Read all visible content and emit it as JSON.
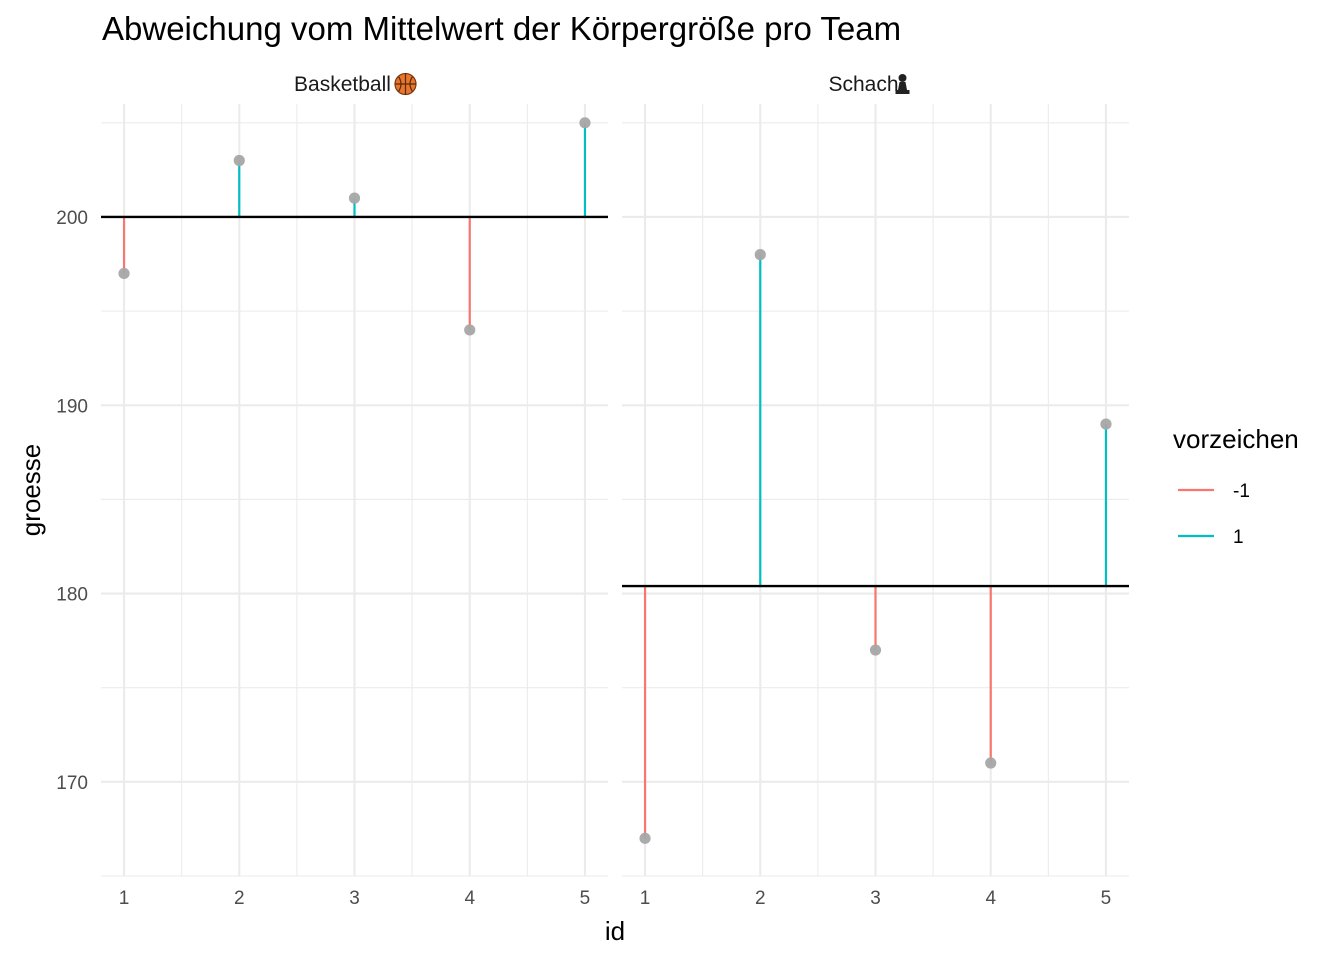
{
  "chart_data": {
    "type": "lollipop",
    "title": "Abweichung vom Mittelwert der Körpergröße pro Team",
    "xlabel": "id",
    "ylabel": "groesse",
    "ylim": [
      165,
      206
    ],
    "yticks": [
      170,
      180,
      190,
      200
    ],
    "xticks": [
      1,
      2,
      3,
      4,
      5
    ],
    "grid": true,
    "legend": {
      "title": "vorzeichen",
      "position": "right",
      "entries": [
        {
          "label": "-1",
          "color": "#F8766D"
        },
        {
          "label": "1",
          "color": "#00BFC4"
        }
      ]
    },
    "point_color": "#a6a6a6",
    "mean_line_color": "#000000",
    "panels": [
      {
        "label": "Basketball",
        "icon": "basketball-icon",
        "mean": 200,
        "points": [
          {
            "id": 1,
            "groesse": 197,
            "vorzeichen": "-1"
          },
          {
            "id": 2,
            "groesse": 203,
            "vorzeichen": "1"
          },
          {
            "id": 3,
            "groesse": 201,
            "vorzeichen": "1"
          },
          {
            "id": 4,
            "groesse": 194,
            "vorzeichen": "-1"
          },
          {
            "id": 5,
            "groesse": 205,
            "vorzeichen": "1"
          }
        ]
      },
      {
        "label": "Schach",
        "icon": "chess-pawn-icon",
        "mean": 180.4,
        "points": [
          {
            "id": 1,
            "groesse": 167,
            "vorzeichen": "-1"
          },
          {
            "id": 2,
            "groesse": 198,
            "vorzeichen": "1"
          },
          {
            "id": 3,
            "groesse": 177,
            "vorzeichen": "-1"
          },
          {
            "id": 4,
            "groesse": 171,
            "vorzeichen": "-1"
          },
          {
            "id": 5,
            "groesse": 189,
            "vorzeichen": "1"
          }
        ]
      }
    ]
  }
}
